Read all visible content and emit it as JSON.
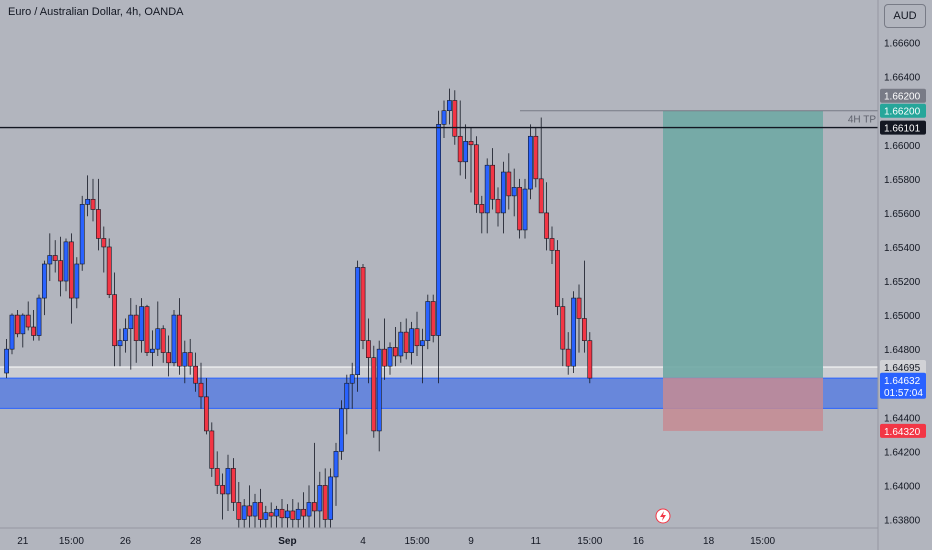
{
  "title": "Euro / Australian Dollar, 4h, OANDA",
  "currency_button": "AUD",
  "colors": {
    "up": "#2962ff",
    "down": "#f23645",
    "background": "#b2b5be",
    "support_zone": "#5b7fe0",
    "resistance_zone": "#d1d2d6",
    "tp_zone": "#6fa9a4",
    "sl_zone": "#c58b93"
  },
  "chart_data": {
    "type": "candlestick",
    "ylim": [
      1.6375,
      1.6685
    ],
    "y_ticks": [
      "1.63800",
      "1.64000",
      "1.64200",
      "1.64400",
      "1.64800",
      "1.65000",
      "1.65200",
      "1.65400",
      "1.65600",
      "1.65800",
      "1.66000",
      "1.66400",
      "1.66600"
    ],
    "x_ticks": [
      {
        "label": "21",
        "index": 3
      },
      {
        "label": "15:00",
        "index": 12
      },
      {
        "label": "26",
        "index": 22
      },
      {
        "label": "28",
        "index": 35
      },
      {
        "label": "Sep",
        "index": 52
      },
      {
        "label": "4",
        "index": 66
      },
      {
        "label": "15:00",
        "index": 76
      },
      {
        "label": "9",
        "index": 86
      },
      {
        "label": "11",
        "index": 98
      },
      {
        "label": "15:00",
        "index": 108
      },
      {
        "label": "16",
        "index": 117
      },
      {
        "label": "18",
        "index": 130
      },
      {
        "label": "15:00",
        "index": 140
      }
    ],
    "candles": [
      [
        1.6466,
        1.6486,
        1.6463,
        1.648
      ],
      [
        1.648,
        1.6501,
        1.6477,
        1.65
      ],
      [
        1.65,
        1.6503,
        1.6487,
        1.6489
      ],
      [
        1.6489,
        1.6501,
        1.6481,
        1.65
      ],
      [
        1.65,
        1.6508,
        1.6491,
        1.6493
      ],
      [
        1.6493,
        1.6503,
        1.6485,
        1.6488
      ],
      [
        1.6488,
        1.6512,
        1.6485,
        1.651
      ],
      [
        1.651,
        1.6532,
        1.65,
        1.653
      ],
      [
        1.653,
        1.6548,
        1.652,
        1.6535
      ],
      [
        1.6535,
        1.6544,
        1.6525,
        1.6532
      ],
      [
        1.6532,
        1.6546,
        1.6511,
        1.652
      ],
      [
        1.652,
        1.6545,
        1.6514,
        1.6543
      ],
      [
        1.6543,
        1.6548,
        1.6495,
        1.651
      ],
      [
        1.651,
        1.6534,
        1.6504,
        1.653
      ],
      [
        1.653,
        1.657,
        1.6526,
        1.6565
      ],
      [
        1.6565,
        1.6582,
        1.6558,
        1.6568
      ],
      [
        1.6568,
        1.658,
        1.6555,
        1.6562
      ],
      [
        1.6562,
        1.658,
        1.6538,
        1.6545
      ],
      [
        1.6545,
        1.6552,
        1.6525,
        1.654
      ],
      [
        1.654,
        1.6545,
        1.651,
        1.6512
      ],
      [
        1.6512,
        1.6525,
        1.647,
        1.6482
      ],
      [
        1.6482,
        1.6492,
        1.647,
        1.6485
      ],
      [
        1.6485,
        1.6498,
        1.6478,
        1.6492
      ],
      [
        1.6492,
        1.651,
        1.6468,
        1.65
      ],
      [
        1.65,
        1.6506,
        1.6472,
        1.6485
      ],
      [
        1.6485,
        1.651,
        1.6478,
        1.6505
      ],
      [
        1.6505,
        1.6506,
        1.6476,
        1.6478
      ],
      [
        1.6478,
        1.6491,
        1.647,
        1.648
      ],
      [
        1.648,
        1.6508,
        1.6476,
        1.6492
      ],
      [
        1.6492,
        1.6494,
        1.6472,
        1.6478
      ],
      [
        1.6478,
        1.6488,
        1.6464,
        1.6472
      ],
      [
        1.6472,
        1.6503,
        1.647,
        1.65
      ],
      [
        1.65,
        1.651,
        1.6465,
        1.647
      ],
      [
        1.647,
        1.6485,
        1.646,
        1.6478
      ],
      [
        1.6478,
        1.6486,
        1.6465,
        1.647
      ],
      [
        1.647,
        1.6478,
        1.6455,
        1.646
      ],
      [
        1.646,
        1.6472,
        1.6445,
        1.6452
      ],
      [
        1.6452,
        1.6463,
        1.643,
        1.6432
      ],
      [
        1.6432,
        1.6437,
        1.6405,
        1.641
      ],
      [
        1.641,
        1.642,
        1.6395,
        1.64
      ],
      [
        1.64,
        1.6407,
        1.638,
        1.6395
      ],
      [
        1.6395,
        1.6418,
        1.6385,
        1.641
      ],
      [
        1.641,
        1.6416,
        1.6385,
        1.639
      ],
      [
        1.639,
        1.6402,
        1.6375,
        1.638
      ],
      [
        1.638,
        1.6392,
        1.6375,
        1.6388
      ],
      [
        1.6388,
        1.64,
        1.6375,
        1.6382
      ],
      [
        1.6382,
        1.6395,
        1.6375,
        1.639
      ],
      [
        1.639,
        1.6398,
        1.6375,
        1.638
      ],
      [
        1.638,
        1.6388,
        1.6375,
        1.6384
      ],
      [
        1.6384,
        1.639,
        1.6375,
        1.6382
      ],
      [
        1.6382,
        1.6388,
        1.6375,
        1.6386
      ],
      [
        1.6386,
        1.6392,
        1.6375,
        1.6381
      ],
      [
        1.6381,
        1.6389,
        1.6375,
        1.6385
      ],
      [
        1.6385,
        1.6392,
        1.6375,
        1.638
      ],
      [
        1.638,
        1.639,
        1.6375,
        1.6386
      ],
      [
        1.6386,
        1.6396,
        1.6375,
        1.6382
      ],
      [
        1.6382,
        1.64,
        1.6375,
        1.639
      ],
      [
        1.639,
        1.6425,
        1.6375,
        1.6385
      ],
      [
        1.6385,
        1.6408,
        1.6375,
        1.64
      ],
      [
        1.64,
        1.641,
        1.6375,
        1.638
      ],
      [
        1.638,
        1.641,
        1.6375,
        1.6405
      ],
      [
        1.6405,
        1.6425,
        1.6388,
        1.642
      ],
      [
        1.642,
        1.645,
        1.6415,
        1.6445
      ],
      [
        1.6445,
        1.6465,
        1.643,
        1.646
      ],
      [
        1.646,
        1.6472,
        1.6445,
        1.6465
      ],
      [
        1.6465,
        1.6532,
        1.6455,
        1.6528
      ],
      [
        1.6528,
        1.653,
        1.648,
        1.6485
      ],
      [
        1.6485,
        1.6498,
        1.646,
        1.6475
      ],
      [
        1.6475,
        1.6482,
        1.6428,
        1.6432
      ],
      [
        1.6432,
        1.6485,
        1.642,
        1.648
      ],
      [
        1.648,
        1.6498,
        1.6462,
        1.647
      ],
      [
        1.647,
        1.6484,
        1.6465,
        1.6481
      ],
      [
        1.6481,
        1.6493,
        1.647,
        1.6476
      ],
      [
        1.6476,
        1.6496,
        1.6472,
        1.649
      ],
      [
        1.649,
        1.6498,
        1.6474,
        1.6478
      ],
      [
        1.6478,
        1.6496,
        1.6471,
        1.6492
      ],
      [
        1.6492,
        1.6502,
        1.6476,
        1.6482
      ],
      [
        1.6482,
        1.6492,
        1.646,
        1.6485
      ],
      [
        1.6485,
        1.6512,
        1.648,
        1.6508
      ],
      [
        1.6508,
        1.6512,
        1.6484,
        1.6488
      ],
      [
        1.6488,
        1.662,
        1.646,
        1.6612
      ],
      [
        1.6612,
        1.6626,
        1.6604,
        1.662
      ],
      [
        1.662,
        1.6633,
        1.6612,
        1.6626
      ],
      [
        1.6626,
        1.6632,
        1.66,
        1.6605
      ],
      [
        1.6605,
        1.6626,
        1.6582,
        1.659
      ],
      [
        1.659,
        1.6612,
        1.658,
        1.6602
      ],
      [
        1.6602,
        1.661,
        1.6572,
        1.66
      ],
      [
        1.66,
        1.6605,
        1.656,
        1.6565
      ],
      [
        1.6565,
        1.657,
        1.6548,
        1.656
      ],
      [
        1.656,
        1.6592,
        1.6548,
        1.6588
      ],
      [
        1.6588,
        1.6598,
        1.6562,
        1.6568
      ],
      [
        1.6568,
        1.6575,
        1.6552,
        1.656
      ],
      [
        1.656,
        1.659,
        1.6548,
        1.6584
      ],
      [
        1.6584,
        1.6595,
        1.6562,
        1.657
      ],
      [
        1.657,
        1.6586,
        1.6558,
        1.6575
      ],
      [
        1.6575,
        1.658,
        1.6545,
        1.655
      ],
      [
        1.655,
        1.658,
        1.6545,
        1.6574
      ],
      [
        1.6574,
        1.6612,
        1.6568,
        1.6605
      ],
      [
        1.6605,
        1.661,
        1.6575,
        1.658
      ],
      [
        1.658,
        1.6616,
        1.6562,
        1.656
      ],
      [
        1.656,
        1.6578,
        1.6538,
        1.6545
      ],
      [
        1.6545,
        1.6552,
        1.653,
        1.6538
      ],
      [
        1.6538,
        1.6544,
        1.65,
        1.6505
      ],
      [
        1.6505,
        1.651,
        1.647,
        1.648
      ],
      [
        1.648,
        1.649,
        1.6465,
        1.647
      ],
      [
        1.647,
        1.6514,
        1.6466,
        1.651
      ],
      [
        1.651,
        1.6518,
        1.6478,
        1.6498
      ],
      [
        1.6498,
        1.6532,
        1.6478,
        1.6485
      ],
      [
        1.6485,
        1.649,
        1.646,
        1.6463
      ]
    ],
    "horizontal_levels": [
      {
        "price": 1.66101,
        "label": "1.66101",
        "style": "black-line"
      },
      {
        "price": 1.64695,
        "label": "1.64695",
        "style": "zone-top"
      },
      {
        "price": 1.64632,
        "label": "1.64632",
        "sublabel": "01:57:04",
        "style": "current-price"
      }
    ],
    "annotations": {
      "tp_label": "4H TP",
      "tp_price_label": "1.66200",
      "tp_price_label_2": "1.66200",
      "sl_price_label": "1.64320"
    }
  }
}
